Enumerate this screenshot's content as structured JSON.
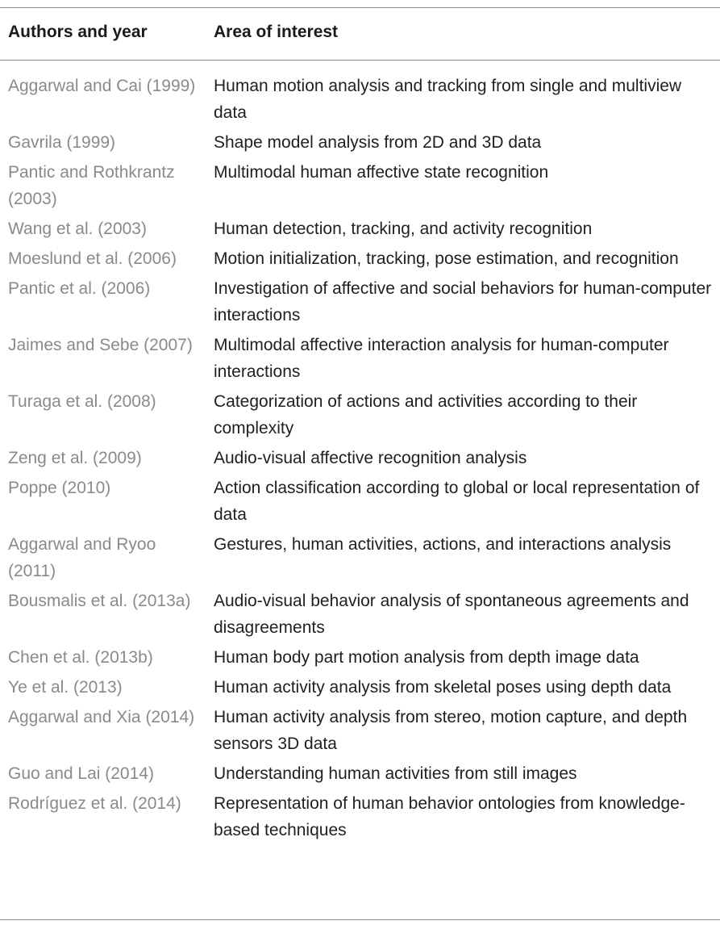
{
  "table": {
    "headers": {
      "authors": "Authors and year",
      "area": "Area of interest"
    },
    "rows": [
      {
        "author": "Aggarwal and Cai (1999)",
        "area": "Human motion analysis and tracking from single and multiview data"
      },
      {
        "author": "Gavrila (1999)",
        "area": "Shape model analysis from 2D and 3D data"
      },
      {
        "author": "Pantic and Rothkrantz (2003)",
        "area": "Multimodal human affective state recognition"
      },
      {
        "author": "Wang et al. (2003)",
        "area": "Human detection, tracking, and activity recognition"
      },
      {
        "author": "Moeslund et al. (2006)",
        "area": "Motion initialization, tracking, pose estimation, and recognition"
      },
      {
        "author": "Pantic et al. (2006)",
        "area": "Investigation of affective and social behaviors for human-computer interactions"
      },
      {
        "author": "Jaimes and Sebe (2007)",
        "area": "Multimodal affective interaction analysis for human-computer interactions"
      },
      {
        "author": "Turaga et al. (2008)",
        "area": "Categorization of actions and activities according to their complexity"
      },
      {
        "author": "Zeng et al. (2009)",
        "area": "Audio-visual affective recognition analysis"
      },
      {
        "author": "Poppe (2010)",
        "area": "Action classification according to global or local representation of data"
      },
      {
        "author": "Aggarwal and Ryoo (2011)",
        "area": "Gestures, human activities, actions, and interactions analysis"
      },
      {
        "author": "Bousmalis et al. (2013a)",
        "area": "Audio-visual behavior analysis of spontaneous agreements and disagreements"
      },
      {
        "author": "Chen et al. (2013b)",
        "area": "Human body part motion analysis from depth image data"
      },
      {
        "author": "Ye et al. (2013)",
        "area": "Human activity analysis from skeletal poses using depth data"
      },
      {
        "author": "Aggarwal and Xia (2014)",
        "area": "Human activity analysis from stereo, motion capture, and depth sensors 3D data"
      },
      {
        "author": "Guo and Lai (2014)",
        "area": "Understanding human activities from still images"
      },
      {
        "author": "Rodríguez et al. (2014)",
        "area": "Representation of human behavior ontologies from knowledge-based techniques"
      }
    ]
  }
}
